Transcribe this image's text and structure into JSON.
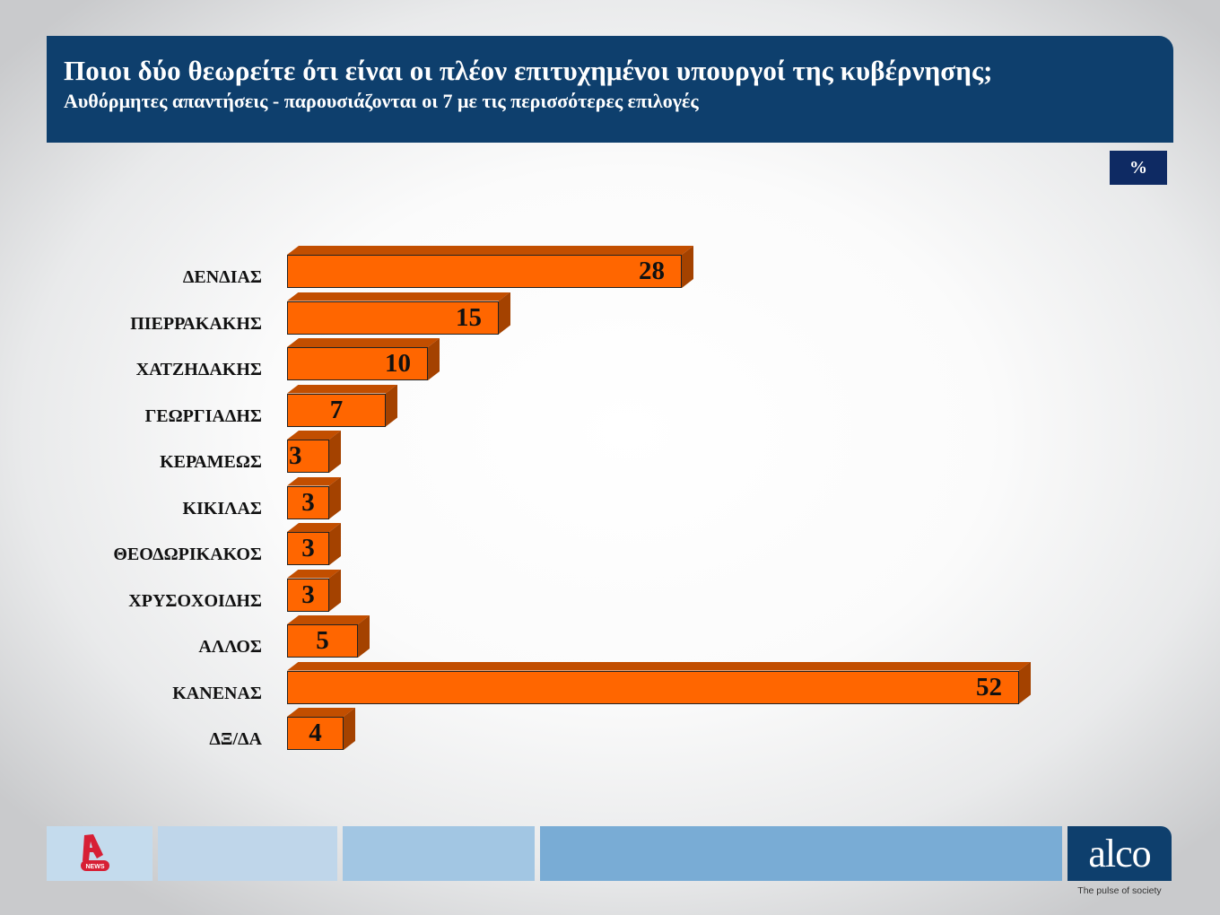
{
  "header": {
    "title": "Ποιοι δύο θεωρείτε ότι είναι οι πλέον επιτυχημένοι υπουργοί της κυβέρνησης;",
    "subtitle": "Αυθόρμητες απαντήσεις - παρουσιάζονται οι 7 με τις περισσότερες επιλογές"
  },
  "unit_badge": "%",
  "colors": {
    "bar_front": "#ff6600",
    "bar_top": "#c24e00",
    "bar_side": "#a44200",
    "header_bg": "#0e3f6d",
    "badge_bg": "#0e2a63"
  },
  "footer": {
    "left_logo": "NEWS",
    "brand": "alco",
    "tagline": "The pulse of society"
  },
  "chart_data": {
    "type": "bar",
    "orientation": "horizontal",
    "style": "3d",
    "title": "Ποιοι δύο θεωρείτε ότι είναι οι πλέον επιτυχημένοι υπουργοί της κυβέρνησης;",
    "subtitle": "Αυθόρμητες απαντήσεις - παρουσιάζονται οι 7 με τις περισσότερες επιλογές",
    "unit": "%",
    "categories": [
      "ΔΕΝΔΙΑΣ",
      "ΠΙΕΡΡΑΚΑΚΗΣ",
      "ΧΑΤΖΗΔΑΚΗΣ",
      "ΓΕΩΡΓΙΑΔΗΣ",
      "ΚΕΡΑΜΕΩΣ",
      "ΚΙΚΙΛΑΣ",
      "ΘΕΟΔΩΡΙΚΑΚΟΣ",
      "ΧΡΥΣΟΧΟΙΔΗΣ",
      "ΑΛΛΟΣ",
      "ΚΑΝΕΝΑΣ",
      "ΔΞ/ΔΑ"
    ],
    "values": [
      28,
      15,
      10,
      7,
      3,
      3,
      3,
      3,
      5,
      52,
      4
    ],
    "xlabel": "",
    "ylabel": "",
    "grid": false,
    "legend": null,
    "data_labels": true
  }
}
